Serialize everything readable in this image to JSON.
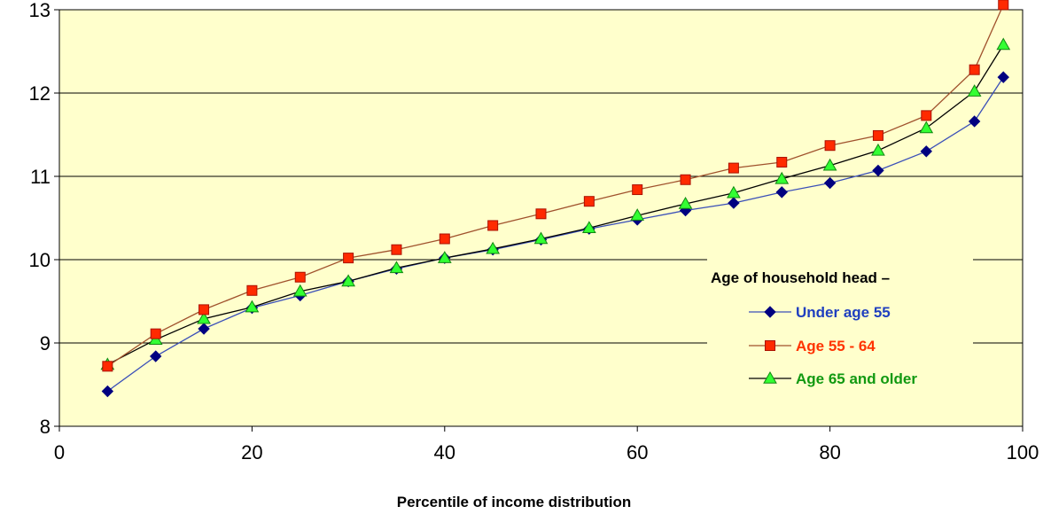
{
  "chart_data": {
    "type": "line",
    "title": "",
    "xlabel": "Percentile of income distribution",
    "ylabel": "",
    "xlim": [
      0,
      100
    ],
    "ylim": [
      8,
      13
    ],
    "xticks": [
      "0",
      "20",
      "40",
      "60",
      "80",
      "100"
    ],
    "yticks": [
      "8",
      "9",
      "10",
      "11",
      "12",
      "13"
    ],
    "grid": "horizontal",
    "plot_background": "#ffffcc",
    "legend": {
      "title": "Age of household head –",
      "placement": "right"
    },
    "x": [
      5,
      10,
      15,
      20,
      25,
      30,
      35,
      40,
      45,
      50,
      55,
      60,
      65,
      70,
      75,
      80,
      85,
      90,
      95,
      98
    ],
    "series": [
      {
        "name": "Under age 55",
        "marker": "diamond",
        "line_color": "#3a4fb8",
        "marker_color": "#000080",
        "text_color": "#1f3fbf",
        "values": [
          8.42,
          8.84,
          9.17,
          9.42,
          9.57,
          9.74,
          9.89,
          10.02,
          10.12,
          10.24,
          10.37,
          10.48,
          10.59,
          10.68,
          10.81,
          10.92,
          11.07,
          11.3,
          11.66,
          12.19
        ]
      },
      {
        "name": "Age 55 - 64",
        "marker": "square",
        "line_color": "#a0522d",
        "marker_color": "#ff2a00",
        "text_color": "#ff3300",
        "values": [
          8.72,
          9.11,
          9.4,
          9.63,
          9.79,
          10.02,
          10.12,
          10.25,
          10.41,
          10.55,
          10.7,
          10.84,
          10.96,
          11.1,
          11.17,
          11.37,
          11.49,
          11.73,
          12.28,
          13.06
        ]
      },
      {
        "name": "Age 65 and older",
        "marker": "triangle",
        "line_color": "#000000",
        "marker_color": "#33ff33",
        "text_color": "#119911",
        "values": [
          8.74,
          9.04,
          9.29,
          9.43,
          9.62,
          9.74,
          9.9,
          10.02,
          10.13,
          10.25,
          10.38,
          10.53,
          10.67,
          10.8,
          10.97,
          11.13,
          11.31,
          11.58,
          12.02,
          12.58
        ]
      }
    ]
  }
}
